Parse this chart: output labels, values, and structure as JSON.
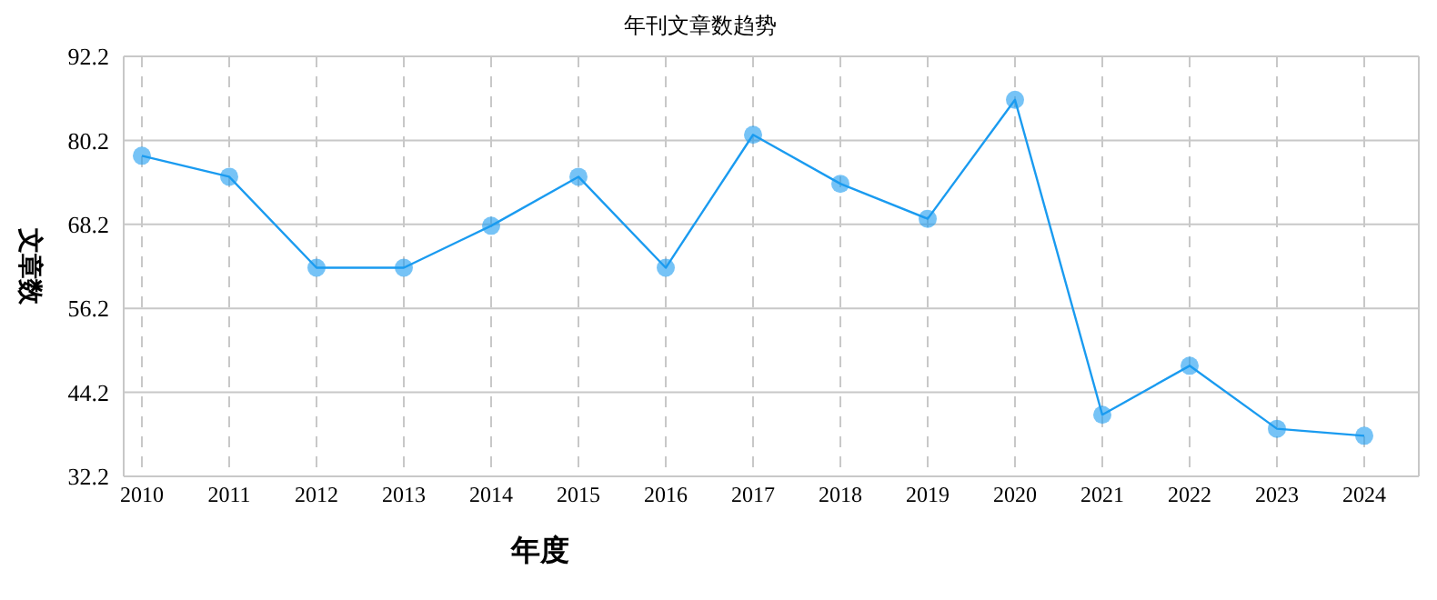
{
  "chart_data": {
    "type": "line",
    "title": "年刊文章数趋势",
    "xlabel": "年度",
    "ylabel": "文章数",
    "categories": [
      "2010",
      "2011",
      "2012",
      "2013",
      "2014",
      "2015",
      "2016",
      "2017",
      "2018",
      "2019",
      "2020",
      "2021",
      "2022",
      "2023",
      "2024"
    ],
    "series": [
      {
        "color": "#1a9bf0",
        "values": [
          78,
          75,
          62,
          62,
          68,
          75,
          62,
          81,
          74,
          69,
          86,
          41,
          48,
          39,
          38
        ]
      }
    ],
    "ylim": [
      32.2,
      92.2
    ],
    "yticks": [
      32.2,
      44.2,
      56.2,
      68.2,
      80.2,
      92.2
    ],
    "grid": true,
    "marker": "circle",
    "line_style": "solid"
  }
}
